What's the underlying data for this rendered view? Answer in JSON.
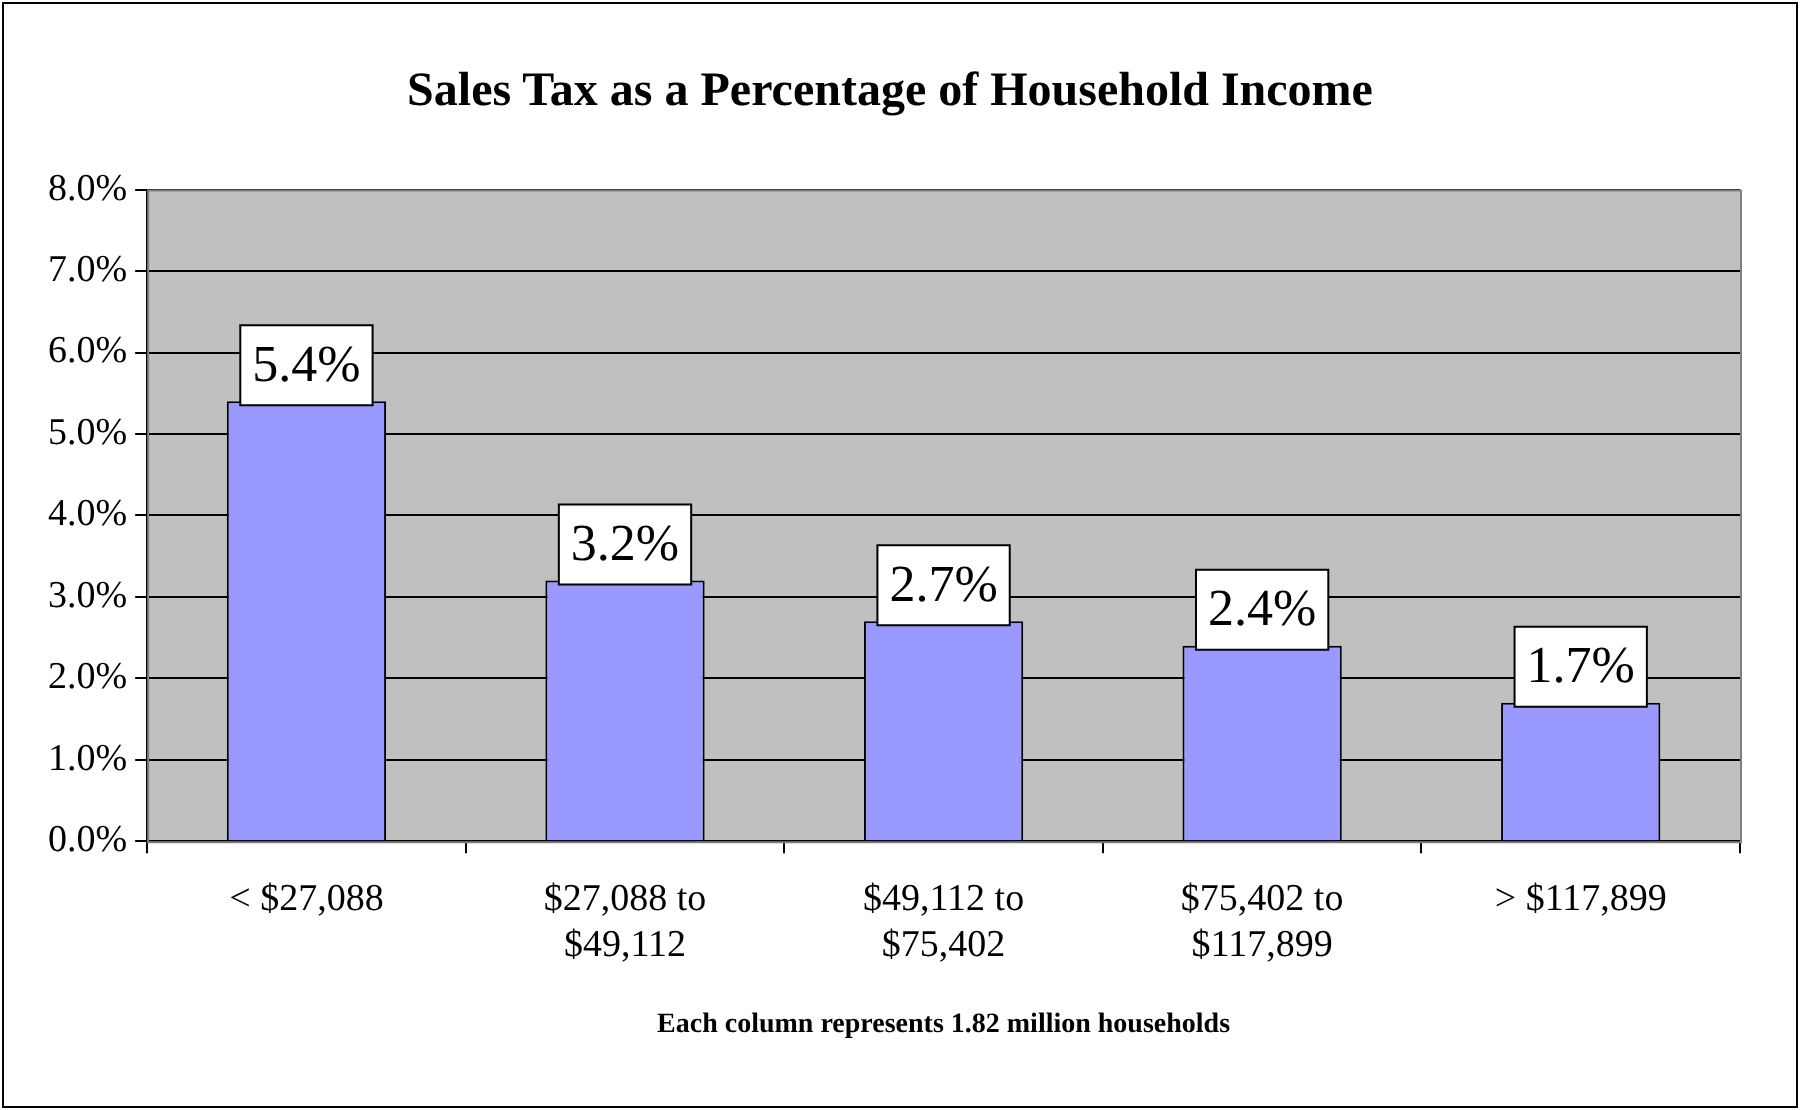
{
  "chart_data": {
    "type": "bar",
    "title": "Sales Tax as a Percentage of Household Income",
    "xlabel": "Each column represents 1.82 million households",
    "categories": [
      "< $27,088",
      "$27,088 to $49,112",
      "$49,112 to $75,402",
      "$75,402 to $117,899",
      "> $117,899"
    ],
    "values": [
      5.4,
      3.2,
      2.7,
      2.4,
      1.7
    ],
    "color": "#9999ff",
    "value_labels": [
      "5.4%",
      "3.2%",
      "2.7%",
      "2.4%",
      "1.7%"
    ],
    "ylim": [
      0,
      8
    ],
    "yticks": [
      {
        "value": 0,
        "label": "0.0%"
      },
      {
        "value": 1,
        "label": "1.0%"
      },
      {
        "value": 2,
        "label": "2.0%"
      },
      {
        "value": 3,
        "label": "3.0%"
      },
      {
        "value": 4,
        "label": "4.0%"
      },
      {
        "value": 5,
        "label": "5.0%"
      },
      {
        "value": 6,
        "label": "6.0%"
      },
      {
        "value": 7,
        "label": "7.0%"
      },
      {
        "value": 8,
        "label": "8.0%"
      }
    ],
    "grid": "y",
    "legend": false
  }
}
